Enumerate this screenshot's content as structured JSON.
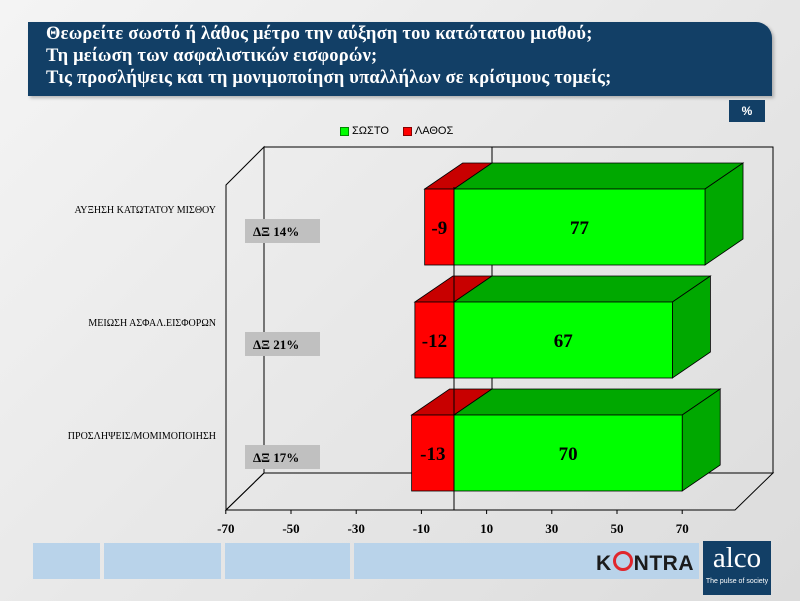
{
  "header": {
    "line1": "Θεωρείτε σωστό ή λάθος μέτρο την αύξηση του κατώτατου μισθού;",
    "line2": "Τη μείωση των ασφαλιστικών εισφορών;",
    "line3": "Τις προσλήψεις και τη μονιμοποίηση υπαλλήλων σε κρίσιμους τομείς;"
  },
  "units_badge": "%",
  "legend": {
    "correct_label": "ΣΩΣΤΟ",
    "wrong_label": "ΛΑΘΟΣ"
  },
  "colors": {
    "correct": "#00ff00",
    "correct_dark": "#00a800",
    "wrong": "#ff0000",
    "wrong_dark": "#c80000",
    "header_bg": "#123f66",
    "dx_box": "#c0c0c0",
    "bottom_bar": "#b9d3ea"
  },
  "chart_data": {
    "type": "bar",
    "orientation": "horizontal",
    "stacked": true,
    "categories": [
      "ΑΥΞΗΣΗ ΚΑΤΩΤΑΤΟΥ ΜΙΣΘΟΥ",
      "ΜΕΙΩΣΗ ΑΣΦΑΛ.ΕΙΣΦΟΡΩΝ",
      "ΠΡΟΣΛΗΨΕΙΣ/ΜΟΜΙΜΟΠΟΙΗΣΗ"
    ],
    "series": [
      {
        "name": "ΣΩΣΤΟ",
        "values": [
          77,
          67,
          70
        ]
      },
      {
        "name": "ΛΑΘΟΣ",
        "values": [
          -9,
          -12,
          -13
        ]
      }
    ],
    "dx_labels": [
      "ΔΞ 14%",
      "ΔΞ 21%",
      "ΔΞ 17%"
    ],
    "xticks": [
      -70,
      -50,
      -30,
      -10,
      10,
      30,
      50,
      70
    ],
    "xlim": [
      -70,
      80
    ],
    "legend_position": "top",
    "grid": false
  },
  "logos": {
    "kontra": "KONTRA",
    "alco_name": "alco",
    "alco_tagline": "The pulse of society"
  }
}
